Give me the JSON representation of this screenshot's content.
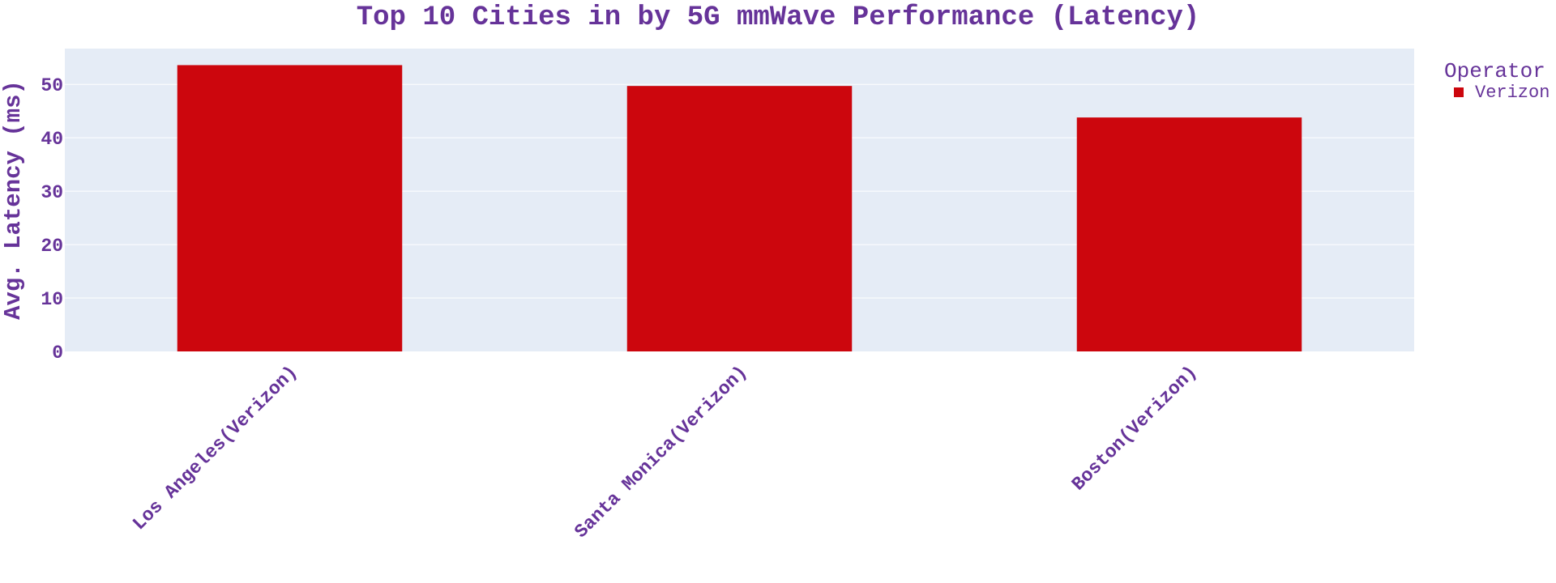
{
  "colors": {
    "text": "#663399",
    "plot_bg": "#E5ECF6",
    "grid": "#FFFFFF",
    "bar": "#CC060D"
  },
  "chart_data": {
    "type": "bar",
    "title": "Top 10 Cities in by 5G mmWave Performance (Latency)",
    "xlabel": "",
    "ylabel": "Avg. Latency (ms)",
    "categories": [
      "Los Angeles(Verizon)",
      "Santa Monica(Verizon)",
      "Boston(Verizon)"
    ],
    "series": [
      {
        "name": "Verizon",
        "values": [
          53.6,
          49.7,
          43.8
        ]
      }
    ],
    "ylim": [
      0,
      56.7
    ],
    "yticks": [
      0,
      10,
      20,
      30,
      40,
      50
    ],
    "grid": true,
    "legend": {
      "title": "Operator",
      "placement": "top-right"
    }
  }
}
